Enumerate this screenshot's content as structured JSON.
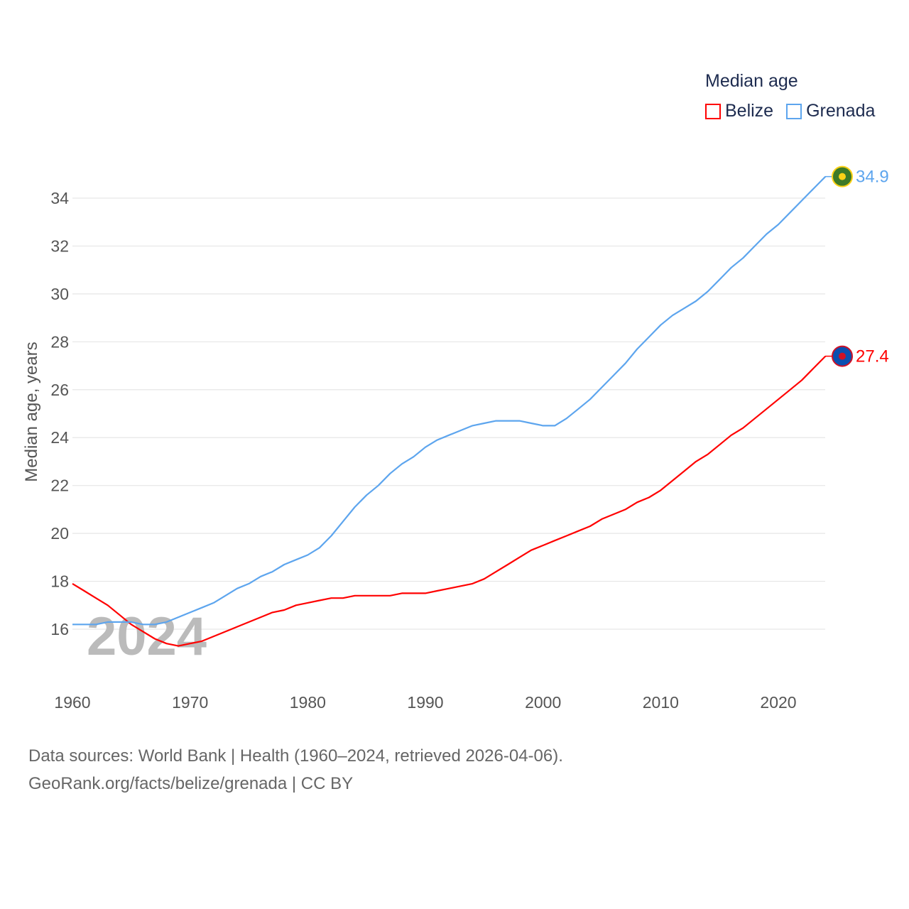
{
  "legend": {
    "title": "Median age",
    "items": [
      "Belize",
      "Grenada"
    ]
  },
  "year_watermark": "2024",
  "source": {
    "line1": "Data sources: World Bank | Health (1960–2024, retrieved 2026-04-06).",
    "line2": "GeoRank.org/facts/belize/grenada | CC BY"
  },
  "chart_data": {
    "type": "line",
    "title": "Median age",
    "xlabel": "",
    "ylabel": "Median age, years",
    "xlim": [
      1960,
      2024
    ],
    "ylim": [
      14.5,
      35.5
    ],
    "xticks": [
      1960,
      1970,
      1980,
      1990,
      2000,
      2010,
      2020
    ],
    "yticks": [
      16,
      18,
      20,
      22,
      24,
      26,
      28,
      30,
      32,
      34
    ],
    "grid": true,
    "legend_position": "top-right",
    "x": [
      1960,
      1961,
      1962,
      1963,
      1964,
      1965,
      1966,
      1967,
      1968,
      1969,
      1970,
      1971,
      1972,
      1973,
      1974,
      1975,
      1976,
      1977,
      1978,
      1979,
      1980,
      1981,
      1982,
      1983,
      1984,
      1985,
      1986,
      1987,
      1988,
      1989,
      1990,
      1991,
      1992,
      1993,
      1994,
      1995,
      1996,
      1997,
      1998,
      1999,
      2000,
      2001,
      2002,
      2003,
      2004,
      2005,
      2006,
      2007,
      2008,
      2009,
      2010,
      2011,
      2012,
      2013,
      2014,
      2015,
      2016,
      2017,
      2018,
      2019,
      2020,
      2021,
      2022,
      2023,
      2024
    ],
    "series": [
      {
        "name": "Belize",
        "color": "#ff0000",
        "end_label": "27.4",
        "values": [
          17.9,
          17.6,
          17.3,
          17.0,
          16.6,
          16.2,
          15.9,
          15.6,
          15.4,
          15.3,
          15.4,
          15.5,
          15.7,
          15.9,
          16.1,
          16.3,
          16.5,
          16.7,
          16.8,
          17.0,
          17.1,
          17.2,
          17.3,
          17.3,
          17.4,
          17.4,
          17.4,
          17.4,
          17.5,
          17.5,
          17.5,
          17.6,
          17.7,
          17.8,
          17.9,
          18.1,
          18.4,
          18.7,
          19.0,
          19.3,
          19.5,
          19.7,
          19.9,
          20.1,
          20.3,
          20.6,
          20.8,
          21.0,
          21.3,
          21.5,
          21.8,
          22.2,
          22.6,
          23.0,
          23.3,
          23.7,
          24.1,
          24.4,
          24.8,
          25.2,
          25.6,
          26.0,
          26.4,
          26.9,
          27.4
        ]
      },
      {
        "name": "Grenada",
        "color": "#5da5ee",
        "end_label": "34.9",
        "values": [
          16.2,
          16.2,
          16.2,
          16.3,
          16.3,
          16.3,
          16.2,
          16.2,
          16.3,
          16.5,
          16.7,
          16.9,
          17.1,
          17.4,
          17.7,
          17.9,
          18.2,
          18.4,
          18.7,
          18.9,
          19.1,
          19.4,
          19.9,
          20.5,
          21.1,
          21.6,
          22.0,
          22.5,
          22.9,
          23.2,
          23.6,
          23.9,
          24.1,
          24.3,
          24.5,
          24.6,
          24.7,
          24.7,
          24.7,
          24.6,
          24.5,
          24.5,
          24.8,
          25.2,
          25.6,
          26.1,
          26.6,
          27.1,
          27.7,
          28.2,
          28.7,
          29.1,
          29.4,
          29.7,
          30.1,
          30.6,
          31.1,
          31.5,
          32.0,
          32.5,
          32.9,
          33.4,
          33.9,
          34.4,
          34.9
        ]
      }
    ]
  }
}
